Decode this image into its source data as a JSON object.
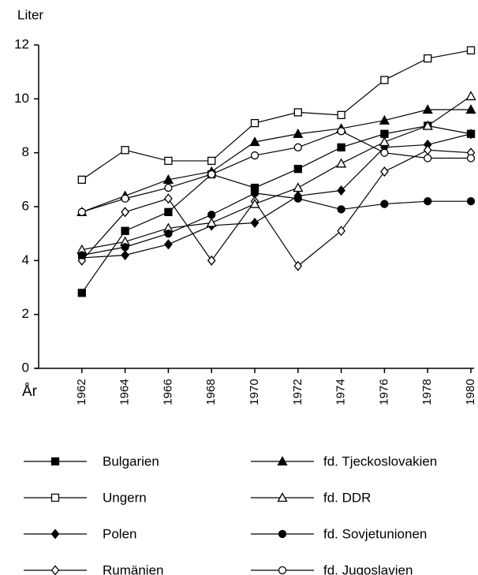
{
  "chart_data": {
    "type": "line",
    "y_label": "Liter",
    "x_label": "År",
    "x": [
      1962,
      1964,
      1966,
      1968,
      1970,
      1972,
      1974,
      1976,
      1978,
      1980
    ],
    "xlim": [
      1960,
      1980
    ],
    "xticks": [
      1962,
      1964,
      1966,
      1968,
      1970,
      1972,
      1974,
      1976,
      1978,
      1980
    ],
    "ylim": [
      0,
      12
    ],
    "yticks": [
      0,
      2,
      4,
      6,
      8,
      10,
      12
    ],
    "series": [
      {
        "name": "Bulgarien",
        "color": "#000000",
        "marker": "square",
        "filled": true,
        "values": [
          2.8,
          5.1,
          5.8,
          7.2,
          6.7,
          7.4,
          8.2,
          8.7,
          9.0,
          8.7
        ]
      },
      {
        "name": "Ungern",
        "color": "#000000",
        "marker": "square",
        "filled": false,
        "values": [
          7.0,
          8.1,
          7.7,
          7.7,
          9.1,
          9.5,
          9.4,
          10.7,
          11.5,
          11.8
        ]
      },
      {
        "name": "Polen",
        "color": "#000000",
        "marker": "diamond",
        "filled": true,
        "values": [
          4.1,
          4.2,
          4.6,
          5.3,
          5.4,
          6.4,
          6.6,
          8.2,
          8.3,
          8.7
        ]
      },
      {
        "name": "Rumänien",
        "color": "#000000",
        "marker": "diamond",
        "filled": false,
        "values": [
          4.0,
          5.8,
          6.3,
          4.0,
          6.2,
          3.8,
          5.1,
          7.3,
          8.1,
          8.0
        ]
      },
      {
        "name": "fd. Tjeckoslovakien",
        "color": "#000000",
        "marker": "triangle",
        "filled": true,
        "values": [
          5.8,
          6.4,
          7.0,
          7.3,
          8.4,
          8.7,
          8.9,
          9.2,
          9.6,
          9.6
        ]
      },
      {
        "name": "fd. DDR",
        "color": "#000000",
        "marker": "triangle",
        "filled": false,
        "values": [
          4.4,
          4.7,
          5.2,
          5.4,
          6.1,
          6.7,
          7.6,
          8.4,
          9.0,
          10.1
        ]
      },
      {
        "name": "fd. Sovjetunionen",
        "color": "#000000",
        "marker": "circle",
        "filled": true,
        "values": [
          4.2,
          4.5,
          5.0,
          5.7,
          6.5,
          6.3,
          5.9,
          6.1,
          6.2,
          6.2
        ]
      },
      {
        "name": "fd. Jugoslavien",
        "color": "#000000",
        "marker": "circle",
        "filled": false,
        "values": [
          5.8,
          6.3,
          6.7,
          7.2,
          7.9,
          8.2,
          8.8,
          8.0,
          7.8,
          7.8
        ]
      }
    ]
  }
}
